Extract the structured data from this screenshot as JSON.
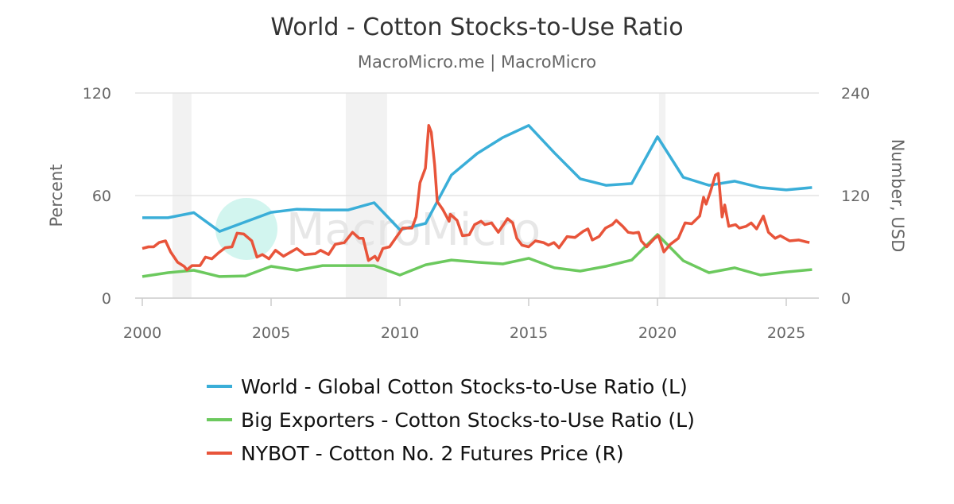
{
  "chart_data": {
    "type": "line",
    "title": "World - Cotton Stocks-to-Use Ratio",
    "subtitle": "MacroMicro.me | MacroMicro",
    "watermark": "MacroMicro",
    "xlim": [
      2000,
      2026.3
    ],
    "x_ticks": [
      "2000",
      "2005",
      "2010",
      "2015",
      "2020",
      "2025"
    ],
    "y_left": {
      "label": "Percent",
      "lim": [
        0,
        120
      ],
      "ticks": [
        "0",
        "60",
        "120"
      ]
    },
    "y_right": {
      "label": "Number, USD",
      "lim": [
        0,
        240
      ],
      "ticks": [
        "0",
        "120",
        "240"
      ]
    },
    "grid": true,
    "legend_placement": "bottom",
    "recession_bands": [
      [
        2001.17,
        2001.91
      ],
      [
        2007.9,
        2009.5
      ],
      [
        2020.06,
        2020.31
      ]
    ],
    "series": [
      {
        "name": "World - Global Cotton Stocks-to-Use Ratio (L)",
        "axis": "left",
        "color": "#3aaed8",
        "x": [
          2000,
          2001,
          2002,
          2003,
          2004,
          2005,
          2006,
          2007,
          2008,
          2009,
          2010,
          2011,
          2012,
          2013,
          2014,
          2015,
          2016,
          2017,
          2018,
          2019,
          2020,
          2021,
          2022,
          2023,
          2024,
          2025,
          2026
        ],
        "y": [
          47,
          47,
          50,
          39,
          44.6,
          50.2,
          52,
          51.6,
          51.6,
          55.8,
          40,
          43.7,
          72,
          84.6,
          94,
          101,
          85,
          69.8,
          66,
          67,
          94.4,
          70.7,
          66,
          68.4,
          64.7,
          63.3,
          64.7
        ]
      },
      {
        "name": "Big Exporters - Cotton Stocks-to-Use Ratio (L)",
        "axis": "left",
        "color": "#6cc95e",
        "x": [
          2000,
          2001,
          2002,
          2003,
          2004,
          2005,
          2006,
          2007,
          2008,
          2009,
          2010,
          2011,
          2012,
          2013,
          2014,
          2015,
          2016,
          2017,
          2018,
          2019,
          2020,
          2021,
          2022,
          2023,
          2024,
          2025,
          2026
        ],
        "y": [
          12.6,
          14.9,
          16.3,
          12.6,
          13,
          18.6,
          16.3,
          19,
          19,
          19,
          13.5,
          19.5,
          22.3,
          21,
          20,
          23.3,
          17.7,
          15.8,
          18.6,
          22.3,
          37.2,
          21.9,
          14.9,
          17.7,
          13.5,
          15.3,
          16.7
        ]
      },
      {
        "name": "NYBOT - Cotton No. 2 Futures Price (R)",
        "axis": "right",
        "color": "#e8543a",
        "x": [
          2000.0,
          2000.24,
          2000.44,
          2000.65,
          2000.9,
          2001.1,
          2001.37,
          2001.63,
          2001.73,
          2001.93,
          2002.24,
          2002.45,
          2002.7,
          2002.96,
          2003.22,
          2003.48,
          2003.68,
          2003.94,
          2004.25,
          2004.45,
          2004.66,
          2004.92,
          2005.17,
          2005.48,
          2006.0,
          2006.3,
          2006.72,
          2006.92,
          2007.23,
          2007.49,
          2007.85,
          2008.16,
          2008.42,
          2008.57,
          2008.78,
          2009.03,
          2009.14,
          2009.34,
          2009.6,
          2009.9,
          2010.11,
          2010.47,
          2010.63,
          2010.78,
          2010.99,
          2011.12,
          2011.22,
          2011.35,
          2011.45,
          2011.66,
          2011.91,
          2011.96,
          2012.22,
          2012.43,
          2012.69,
          2012.9,
          2013.15,
          2013.3,
          2013.56,
          2013.82,
          2014.18,
          2014.38,
          2014.54,
          2014.74,
          2015.0,
          2015.26,
          2015.57,
          2015.77,
          2015.98,
          2016.18,
          2016.49,
          2016.8,
          2017.11,
          2017.3,
          2017.47,
          2017.73,
          2017.98,
          2018.24,
          2018.4,
          2018.65,
          2018.86,
          2019.06,
          2019.27,
          2019.37,
          2019.58,
          2019.89,
          2020.04,
          2020.25,
          2020.5,
          2020.81,
          2021.07,
          2021.33,
          2021.64,
          2021.79,
          2021.89,
          2022.05,
          2022.25,
          2022.36,
          2022.51,
          2022.61,
          2022.77,
          2023.03,
          2023.18,
          2023.44,
          2023.64,
          2023.85,
          2024.11,
          2024.31,
          2024.57,
          2024.77,
          2025.13,
          2025.49,
          2025.75,
          2025.9
        ],
        "y": [
          58,
          60,
          60,
          65,
          67,
          54,
          42,
          37,
          33,
          38,
          38,
          48,
          46,
          53,
          59,
          60,
          76,
          75,
          67,
          48,
          51,
          46,
          56,
          49,
          58,
          51,
          52,
          56,
          51,
          63,
          65,
          77,
          70,
          70,
          44,
          49,
          44,
          58,
          60,
          73,
          82,
          82,
          95,
          135,
          152,
          202,
          194,
          156,
          113,
          104,
          90,
          98,
          91,
          73,
          74,
          86,
          90,
          86,
          88,
          77,
          93,
          88,
          70,
          62,
          60,
          67,
          65,
          62,
          65,
          59,
          72,
          71,
          78,
          81,
          68,
          72,
          82,
          86,
          91,
          84,
          77,
          76,
          77,
          67,
          60,
          70,
          73,
          54,
          63,
          70,
          88,
          87,
          96,
          118,
          110,
          124,
          144,
          146,
          95,
          109,
          84,
          86,
          82,
          84,
          88,
          81,
          96,
          77,
          70,
          73,
          67,
          68,
          66,
          65
        ]
      }
    ]
  }
}
